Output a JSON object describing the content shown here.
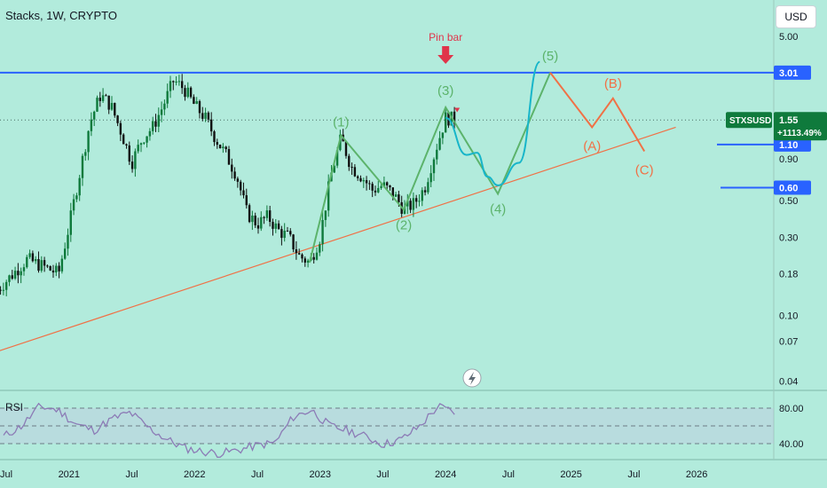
{
  "header": {
    "title": "Stacks, 1W, CRYPTO",
    "currency_button": "USD"
  },
  "colors": {
    "background": "#b2ebdc",
    "candle_up": "#0f7a3c",
    "candle_down": "#111111",
    "wave_green": "#5cb36b",
    "projection_cyan": "#17b5c9",
    "correction_orange": "#f07146",
    "trendline": "#f07146",
    "level_blue": "#2962ff",
    "pin_arrow": "#e0344a",
    "rsi_line": "#8c7bb6"
  },
  "chart_data": {
    "type": "candlestick",
    "symbol": "STXSUSD",
    "title": "Stacks, 1W, CRYPTO",
    "y_scale": "log",
    "price_axis_ticks": [
      "5.00",
      "3.01",
      "1.55",
      "1.10",
      "0.90",
      "0.60",
      "0.50",
      "0.30",
      "0.18",
      "0.10",
      "0.07",
      "0.04"
    ],
    "time_axis_ticks": [
      "Jul",
      "2021",
      "Jul",
      "2022",
      "Jul",
      "2023",
      "Jul",
      "2024",
      "Jul",
      "2025",
      "Jul",
      "2026"
    ],
    "last_price": {
      "label": "STXSUSD",
      "value": "1.55",
      "change": "+1113.49%"
    },
    "levels": [
      {
        "price": 3.01,
        "label": "3.01"
      },
      {
        "price": 1.1,
        "label": "1.10"
      },
      {
        "price": 0.6,
        "label": "0.60"
      }
    ],
    "annotations": {
      "pin_bar": "Pin bar",
      "waves": [
        "(1)",
        "(2)",
        "(3)",
        "(4)",
        "(5)"
      ],
      "corrections": [
        "(A)",
        "(B)",
        "(C)"
      ]
    },
    "path_points": [
      {
        "t": "2020-06",
        "p": 0.14
      },
      {
        "t": "2020-09",
        "p": 0.22
      },
      {
        "t": "2020-12",
        "p": 0.18
      },
      {
        "t": "2021-01",
        "p": 0.35
      },
      {
        "t": "2021-03",
        "p": 1.5
      },
      {
        "t": "2021-04",
        "p": 2.2
      },
      {
        "t": "2021-05",
        "p": 1.9
      },
      {
        "t": "2021-06",
        "p": 1.3
      },
      {
        "t": "2021-07",
        "p": 0.85
      },
      {
        "t": "2021-08",
        "p": 1.2
      },
      {
        "t": "2021-09",
        "p": 1.4
      },
      {
        "t": "2021-10",
        "p": 1.9
      },
      {
        "t": "2021-11",
        "p": 2.7
      },
      {
        "t": "2021-12",
        "p": 2.4
      },
      {
        "t": "2022-01",
        "p": 1.9
      },
      {
        "t": "2022-02",
        "p": 1.6
      },
      {
        "t": "2022-03",
        "p": 1.2
      },
      {
        "t": "2022-04",
        "p": 0.95
      },
      {
        "t": "2022-05",
        "p": 0.72
      },
      {
        "t": "2022-06",
        "p": 0.42
      },
      {
        "t": "2022-07",
        "p": 0.36
      },
      {
        "t": "2022-08",
        "p": 0.4
      },
      {
        "t": "2022-09",
        "p": 0.33
      },
      {
        "t": "2022-10",
        "p": 0.3
      },
      {
        "t": "2022-11",
        "p": 0.23
      },
      {
        "t": "2022-12",
        "p": 0.21
      },
      {
        "t": "2023-01",
        "p": 0.3
      },
      {
        "t": "2023-02",
        "p": 0.7
      },
      {
        "t": "2023-03",
        "p": 1.2
      },
      {
        "t": "2023-04",
        "p": 0.8
      },
      {
        "t": "2023-05",
        "p": 0.7
      },
      {
        "t": "2023-06",
        "p": 0.58
      },
      {
        "t": "2023-07",
        "p": 0.62
      },
      {
        "t": "2023-08",
        "p": 0.55
      },
      {
        "t": "2023-09",
        "p": 0.44
      },
      {
        "t": "2023-10",
        "p": 0.48
      },
      {
        "t": "2023-11",
        "p": 0.6
      },
      {
        "t": "2023-12",
        "p": 1.0
      },
      {
        "t": "2024-01",
        "p": 1.6
      },
      {
        "t": "2024-02",
        "p": 1.55
      }
    ],
    "elliott_wave_path": [
      {
        "t": "2022-12",
        "p": 0.21
      },
      {
        "t": "2023-03",
        "p": 1.25
      },
      {
        "t": "2023-09",
        "p": 0.44
      },
      {
        "t": "2024-01",
        "p": 1.85
      },
      {
        "t": "2024-06",
        "p": 0.55
      },
      {
        "t": "2024-11",
        "p": 3.01
      }
    ],
    "projection_curve": [
      {
        "t": "2024-01",
        "p": 1.6
      },
      {
        "t": "2024-03",
        "p": 0.95
      },
      {
        "t": "2024-04",
        "p": 0.98
      },
      {
        "t": "2024-05",
        "p": 0.7
      },
      {
        "t": "2024-06",
        "p": 0.62
      },
      {
        "t": "2024-08",
        "p": 0.85
      },
      {
        "t": "2024-10",
        "p": 3.5
      }
    ],
    "correction_path": [
      {
        "t": "2024-11",
        "p": 3.01
      },
      {
        "t": "2025-03",
        "p": 1.4
      },
      {
        "t": "2025-05",
        "p": 2.1
      },
      {
        "t": "2025-08",
        "p": 1.0
      }
    ],
    "trendline": [
      {
        "t": "2020-06",
        "p": 0.06
      },
      {
        "t": "2025-11",
        "p": 1.4
      }
    ],
    "rsi": {
      "label": "RSI",
      "ticks": [
        "80.00",
        "40.00"
      ],
      "values": [
        48,
        60,
        82,
        78,
        62,
        55,
        68,
        75,
        58,
        45,
        35,
        31,
        29,
        33,
        38,
        41,
        70,
        78,
        60,
        55,
        48,
        39,
        45,
        60,
        82,
        75
      ]
    }
  }
}
